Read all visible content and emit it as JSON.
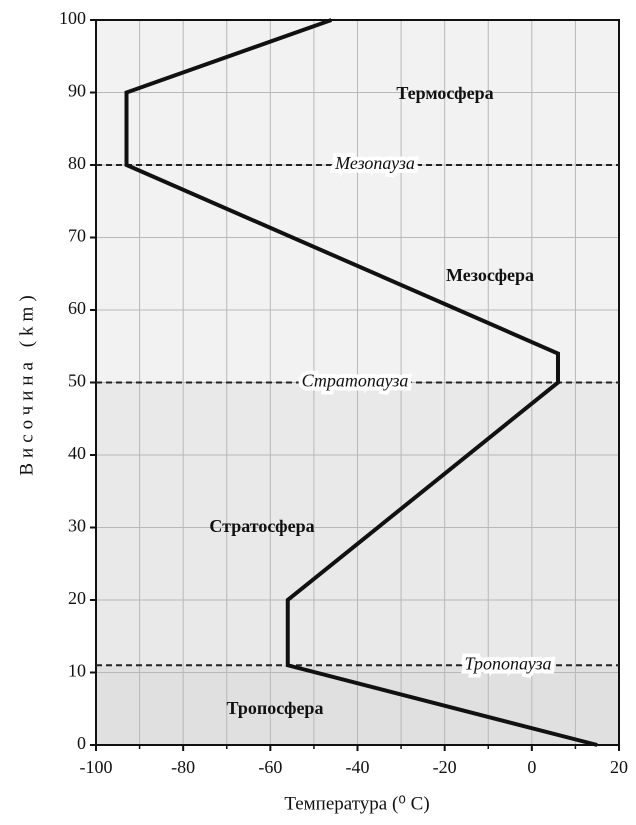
{
  "chart_data": {
    "type": "line",
    "xlabel": "Температура (⁰ C)",
    "ylabel": "Височина (km)",
    "x": [
      15,
      -56,
      -56,
      6,
      6,
      -93,
      -93,
      -46
    ],
    "series": [
      {
        "color": "#111111",
        "values": [
          0,
          11,
          20,
          50,
          54,
          80,
          90,
          100
        ]
      }
    ],
    "xlim": [
      -100,
      20
    ],
    "xticks": [
      -100,
      -80,
      -60,
      -40,
      -20,
      0,
      20
    ],
    "xminorticks": [
      -90,
      -70,
      -50,
      -30,
      -10,
      10
    ],
    "ylim": [
      0,
      100
    ],
    "yticks": [
      0,
      10,
      20,
      30,
      40,
      50,
      60,
      70,
      80,
      90,
      100
    ],
    "grid": true,
    "boundaries": [
      {
        "label": "Мезопауза",
        "value": 80
      },
      {
        "label": "Стратопауза",
        "value": 50
      },
      {
        "label": "Тропопауза",
        "value": 11
      }
    ],
    "regions": [
      "Термосфера",
      "Мезосфера",
      "Стратосфера",
      "Тропосфера"
    ]
  }
}
